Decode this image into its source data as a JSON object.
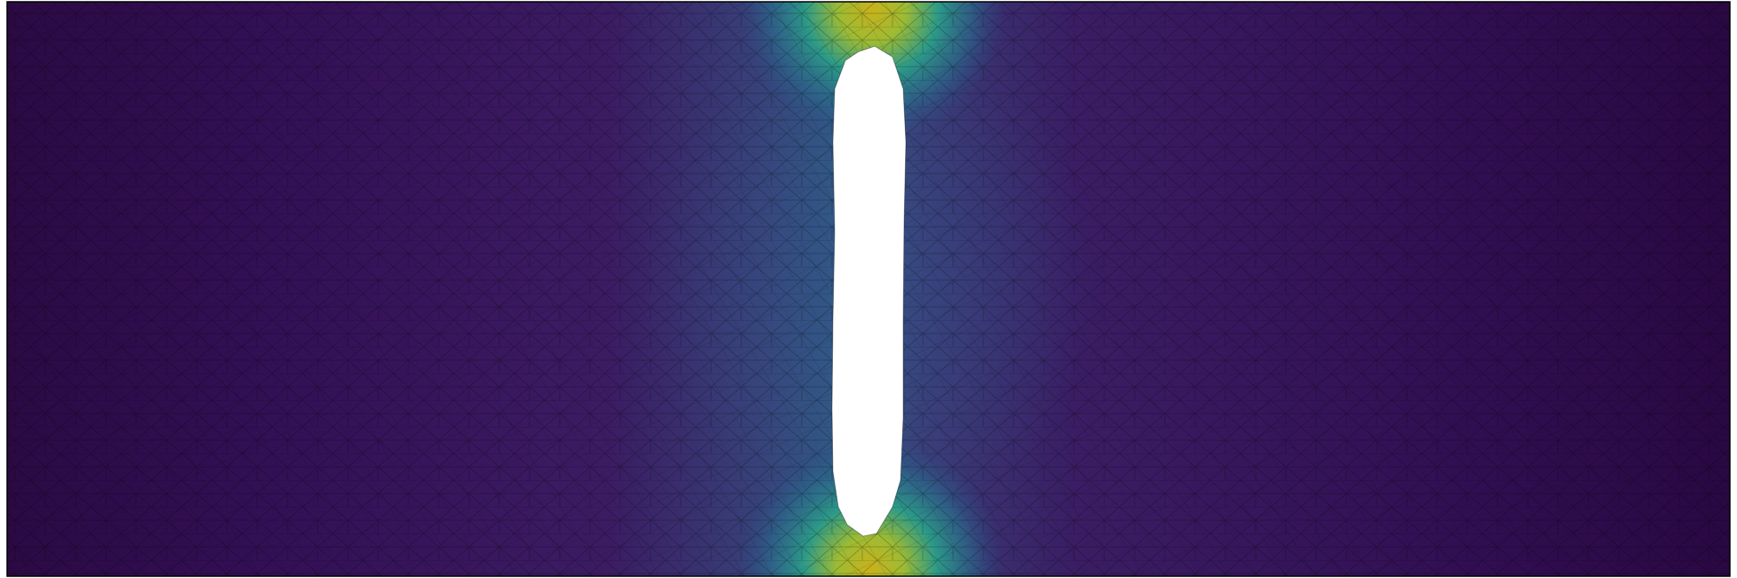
{
  "figure": {
    "kind": "finite-element mesh contour plot",
    "colormap": "viridis",
    "colors": {
      "low": "#2a0a40",
      "mid_low": "#3b3f7a",
      "mid": "#21918c",
      "high": "#bfae1a",
      "hole_fill": "#ffffff",
      "mesh_line": "#000000",
      "border": "#000000"
    },
    "labels": []
  }
}
